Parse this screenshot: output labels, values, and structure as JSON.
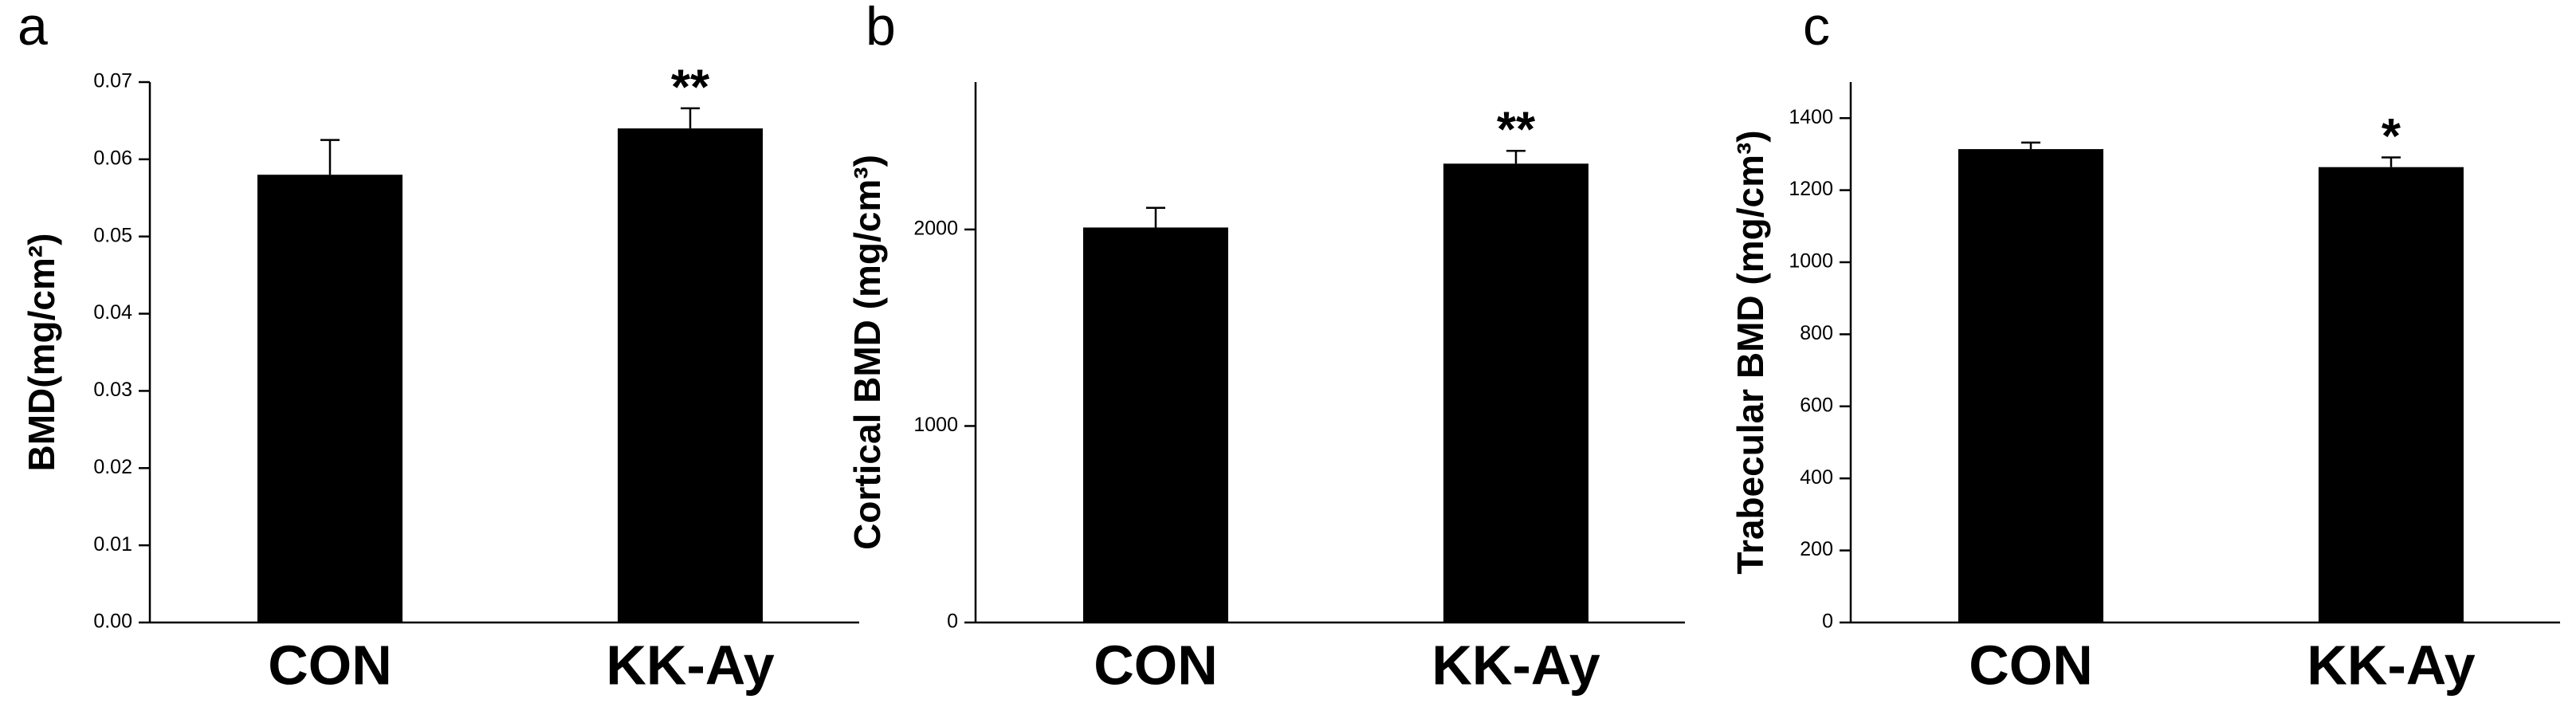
{
  "chart_data": [
    {
      "type": "bar",
      "panel": "a",
      "ylabel": "BMD(mg/cm²)",
      "categories": [
        "CON",
        "KK-Ay"
      ],
      "values": [
        0.058,
        0.064
      ],
      "errors": [
        0.0045,
        0.0026
      ],
      "significance": [
        null,
        "**"
      ],
      "color": "#000000",
      "ylim": [
        0,
        0.07
      ],
      "yticks": [
        {
          "value": 0,
          "label": "0.00"
        },
        0.01,
        0.02,
        0.03,
        0.04,
        0.05,
        0.06,
        0.07
      ]
    },
    {
      "type": "bar",
      "panel": "b",
      "ylabel": "Cortical BMD (mg/cm³)",
      "categories": [
        "CON",
        "KK-Ay"
      ],
      "values": [
        2010,
        2335
      ],
      "errors": [
        100,
        65
      ],
      "significance": [
        null,
        "**"
      ],
      "color": "#000000",
      "ylim": [
        0,
        2750
      ],
      "yticks": [
        0,
        1000,
        2000
      ]
    },
    {
      "type": "bar",
      "panel": "c",
      "ylabel": "Trabecular BMD (mg/cm³)",
      "categories": [
        "CON",
        "KK-Ay"
      ],
      "values": [
        1314,
        1264
      ],
      "errors": [
        18,
        27
      ],
      "significance": [
        null,
        "*"
      ],
      "color": "#000000",
      "ylim": [
        0,
        1500
      ],
      "yticks": [
        0,
        200,
        400,
        600,
        800,
        1000,
        1200,
        1400
      ]
    }
  ]
}
